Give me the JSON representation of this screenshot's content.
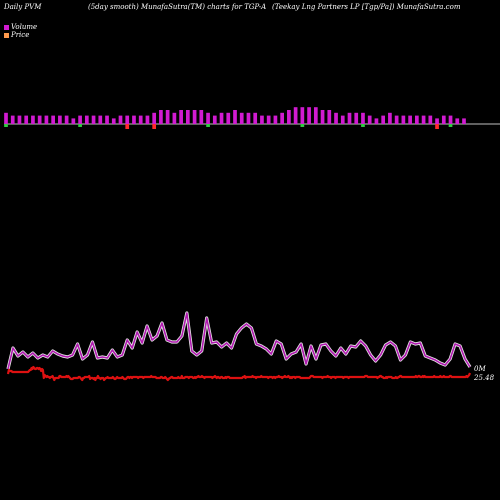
{
  "header": {
    "left": "Daily PVM",
    "center": "(5day smooth) MunafaSutra(TM) charts for TGP-A",
    "right": "(Teekay Lng Partners LP [Tgp/Pa]) MunafaSutra.com"
  },
  "legend": {
    "volume_label": "Volume",
    "price_label": "Price",
    "volume_color": "#d11bd1",
    "price_color": "#ff9a4d"
  },
  "colors": {
    "background": "#000000",
    "volume_bar": "#d11bd1",
    "volume_bar_down": "#ff2a2a",
    "volume_bar_up": "#2ecc40",
    "volume_line": "#b01ab0",
    "price_line": "#dd1111",
    "baseline": "#ffffff"
  },
  "chart_data": {
    "type": "line",
    "grid": false,
    "volume_bars": {
      "values": [
        4,
        3,
        3,
        3,
        3,
        3,
        3,
        3,
        3,
        3,
        2,
        3,
        3,
        3,
        3,
        3,
        2,
        3,
        3,
        3,
        3,
        3,
        4,
        5,
        5,
        4,
        5,
        5,
        5,
        5,
        4,
        3,
        4,
        4,
        5,
        4,
        4,
        4,
        3,
        3,
        3,
        4,
        5,
        6,
        6,
        6,
        6,
        5,
        5,
        4,
        3,
        4,
        4,
        4,
        3,
        2,
        3,
        4,
        3,
        3,
        3,
        3,
        3,
        3,
        2,
        3,
        3,
        2,
        2
      ],
      "markers": [
        {
          "index": 0,
          "type": "up"
        },
        {
          "index": 11,
          "type": "up"
        },
        {
          "index": 18,
          "type": "down"
        },
        {
          "index": 22,
          "type": "down"
        },
        {
          "index": 30,
          "type": "up"
        },
        {
          "index": 44,
          "type": "up"
        },
        {
          "index": 53,
          "type": "up"
        },
        {
          "index": 64,
          "type": "down"
        },
        {
          "index": 66,
          "type": "up"
        }
      ]
    },
    "series": [
      {
        "name": "Volume",
        "values": [
          23,
          44,
          36,
          40,
          35,
          39,
          34,
          37,
          35,
          41,
          38,
          36,
          35,
          37,
          48,
          33,
          37,
          50,
          34,
          35,
          34,
          42,
          35,
          37,
          52,
          44,
          60,
          49,
          66,
          52,
          56,
          69,
          52,
          50,
          50,
          56,
          79,
          41,
          37,
          41,
          74,
          49,
          50,
          45,
          49,
          44,
          58,
          64,
          68,
          64,
          48,
          46,
          43,
          38,
          51,
          48,
          33,
          38,
          40,
          48,
          28,
          46,
          33,
          47,
          48,
          41,
          36,
          44,
          38,
          46,
          45,
          51,
          46,
          37,
          31,
          37,
          47,
          50,
          46,
          32,
          37,
          50,
          48,
          49,
          36,
          34,
          32,
          29,
          27,
          33,
          48,
          46,
          33,
          25
        ]
      },
      {
        "name": "Price",
        "values": [
          20,
          24,
          23,
          23,
          23,
          22,
          22,
          22,
          22,
          22,
          22,
          22,
          22,
          22,
          22,
          22,
          22,
          22,
          22,
          22,
          22,
          22,
          22,
          22,
          23,
          24,
          24,
          26,
          25,
          27,
          26,
          25,
          25,
          26,
          26,
          25,
          26,
          25,
          23,
          25,
          24,
          16,
          19,
          18,
          17,
          18,
          17,
          17,
          16,
          17,
          17,
          18,
          16,
          14,
          16,
          16,
          16,
          16,
          16,
          18,
          18,
          17,
          17,
          17,
          17,
          17,
          17,
          18,
          17,
          18,
          17,
          16,
          15,
          15,
          15,
          16,
          16,
          16,
          16,
          16,
          16,
          17,
          17,
          16,
          15,
          14,
          16,
          16,
          17,
          17,
          17,
          17,
          17,
          18,
          15,
          16,
          16,
          16,
          15,
          16,
          14,
          16,
          16,
          18,
          16,
          16,
          15,
          16,
          16,
          16,
          14,
          15,
          16,
          16,
          17,
          16,
          16,
          16,
          16,
          16,
          17,
          16,
          15,
          15,
          16,
          17,
          16,
          16,
          16,
          16,
          16,
          17,
          16,
          15,
          15,
          15,
          16,
          17,
          17,
          16,
          17,
          17,
          16,
          17,
          17,
          17,
          17,
          17,
          17,
          16,
          17,
          17,
          17,
          17,
          17,
          16,
          17,
          17,
          17,
          17,
          17,
          17,
          17,
          17,
          18,
          17,
          17,
          17,
          17,
          17,
          16,
          16,
          16,
          16,
          16,
          17,
          17,
          16,
          16,
          16,
          17,
          16,
          15,
          14,
          15,
          16,
          16,
          17,
          17,
          16,
          16,
          16,
          16,
          16,
          16,
          17,
          16,
          16,
          16,
          18,
          16,
          16,
          16,
          17,
          17,
          17,
          17,
          16,
          17,
          17,
          17,
          17,
          16,
          16,
          17,
          16,
          17,
          17,
          18,
          17,
          17,
          17,
          18,
          17,
          17,
          16,
          17,
          17,
          17,
          17,
          17,
          17,
          17,
          17,
          16,
          17,
          17,
          18,
          17,
          16,
          17,
          17,
          16,
          16,
          17,
          17,
          16,
          16,
          16,
          17,
          16,
          17,
          17,
          17,
          16,
          16,
          16,
          16,
          16,
          16,
          16,
          16,
          16,
          16,
          16,
          16,
          16,
          16,
          16,
          17,
          17,
          18,
          16,
          17,
          17,
          17,
          17,
          17,
          17,
          17,
          18,
          17,
          17,
          17,
          16,
          17,
          17,
          17,
          17,
          17,
          18,
          17,
          17,
          17,
          17,
          17,
          17,
          17,
          16,
          17,
          17,
          17,
          17,
          16,
          17,
          17,
          16,
          17,
          17,
          17,
          18,
          17,
          17,
          17,
          16,
          17,
          17,
          18,
          17,
          17,
          17,
          18,
          17,
          16,
          17,
          16,
          17,
          17,
          17,
          16,
          17,
          17,
          17,
          17,
          17,
          16,
          16,
          16,
          16,
          16,
          16,
          16,
          16,
          16,
          16,
          16,
          17,
          18,
          18,
          18,
          17,
          17,
          17,
          17,
          17,
          17,
          17,
          17,
          17,
          17,
          16,
          17,
          17,
          17,
          17,
          17,
          18,
          17,
          17,
          17,
          16,
          17,
          17,
          17,
          17,
          16,
          17,
          17,
          17,
          17,
          17,
          17,
          17,
          17,
          16,
          17,
          17,
          17,
          17,
          17,
          16,
          17,
          17,
          17,
          17,
          17,
          17,
          17,
          17,
          17,
          17,
          17,
          17,
          17,
          17,
          17,
          17,
          17,
          17,
          18,
          18,
          18,
          17,
          17,
          17,
          17,
          17,
          17,
          17,
          17,
          17,
          17,
          17,
          16,
          17,
          17,
          18,
          18,
          17,
          17,
          16,
          16,
          16,
          17,
          16,
          17,
          17,
          17,
          17,
          17,
          16,
          16,
          16,
          16,
          17,
          16,
          16,
          17,
          17,
          18,
          18,
          17,
          17,
          17,
          17,
          17,
          17,
          17,
          17,
          17,
          17,
          17,
          17,
          17,
          17,
          17,
          17,
          18,
          17,
          17,
          18,
          18,
          17,
          17,
          17,
          18,
          17,
          18,
          17,
          17,
          17,
          17,
          17,
          17,
          17,
          17,
          17,
          17,
          18,
          17,
          17,
          17,
          17,
          17,
          17,
          18,
          17,
          17,
          17,
          18,
          17,
          17,
          17,
          17,
          17,
          17,
          18,
          18,
          17,
          17,
          17,
          17,
          17,
          17,
          17,
          17,
          17,
          17,
          17,
          17,
          17,
          17,
          17,
          17,
          17,
          18,
          17,
          18,
          19,
          21
        ]
      }
    ],
    "end_labels": {
      "volume": "0M",
      "price": "25.48"
    }
  }
}
